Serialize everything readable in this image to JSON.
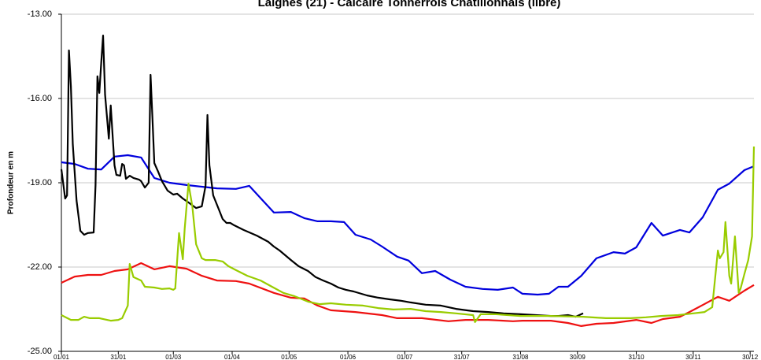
{
  "chart_data": {
    "type": "line",
    "title": "Laignes (21) - Calcaire Tonnerrois Châtillonnais (libre)",
    "y_label": "Profondeur en m",
    "xlim": [
      0,
      365
    ],
    "xticks": [
      {
        "value": 0,
        "label": "01/01"
      },
      {
        "value": 30,
        "label": "31/01"
      },
      {
        "value": 59,
        "label": "01/03"
      },
      {
        "value": 90,
        "label": "01/04"
      },
      {
        "value": 120,
        "label": "01/05"
      },
      {
        "value": 151,
        "label": "01/06"
      },
      {
        "value": 181,
        "label": "01/07"
      },
      {
        "value": 211,
        "label": "31/07"
      },
      {
        "value": 242,
        "label": "31/08"
      },
      {
        "value": 272,
        "label": "30/09"
      },
      {
        "value": 303,
        "label": "31/10"
      },
      {
        "value": 333,
        "label": "30/11"
      },
      {
        "value": 363,
        "label": "30/12"
      }
    ],
    "ylim": [
      -25,
      -13
    ],
    "yticks": [
      {
        "value": -25,
        "label": "-25.00"
      },
      {
        "value": -22,
        "label": "-22.00"
      },
      {
        "value": -19,
        "label": "-19.00"
      },
      {
        "value": -16,
        "label": "-16.00"
      },
      {
        "value": -13,
        "label": "-13.00"
      }
    ],
    "grid": true,
    "series": [
      {
        "color": "#0000dd",
        "x": [
          0,
          7,
          14,
          21,
          28,
          35,
          42,
          49,
          57,
          66,
          74,
          82,
          92,
          99,
          112,
          121,
          128,
          135,
          142,
          149,
          155,
          163,
          169,
          177,
          183,
          190,
          197,
          205,
          213,
          222,
          230,
          238,
          243,
          251,
          257,
          262,
          267,
          274,
          282,
          291,
          297,
          303,
          311,
          317,
          326,
          331,
          338,
          346,
          352,
          360,
          365
        ],
        "values": [
          -18.27,
          -18.33,
          -18.5,
          -18.53,
          -18.07,
          -18.02,
          -18.1,
          -18.83,
          -19.0,
          -19.08,
          -19.14,
          -19.2,
          -19.22,
          -19.11,
          -20.06,
          -20.04,
          -20.26,
          -20.37,
          -20.37,
          -20.4,
          -20.85,
          -21.02,
          -21.27,
          -21.63,
          -21.77,
          -22.22,
          -22.14,
          -22.45,
          -22.7,
          -22.78,
          -22.81,
          -22.73,
          -22.95,
          -22.98,
          -22.95,
          -22.7,
          -22.7,
          -22.31,
          -21.69,
          -21.47,
          -21.52,
          -21.3,
          -20.43,
          -20.88,
          -20.68,
          -20.77,
          -20.23,
          -19.25,
          -19.03,
          -18.55,
          -18.41
        ]
      },
      {
        "color": "#ee1111",
        "x": [
          0,
          7,
          14,
          21,
          28,
          35,
          42,
          49,
          57,
          66,
          74,
          82,
          92,
          99,
          112,
          121,
          128,
          135,
          142,
          155,
          169,
          177,
          190,
          204,
          213,
          225,
          238,
          243,
          258,
          267,
          274,
          282,
          291,
          303,
          311,
          317,
          326,
          331,
          338,
          346,
          352,
          360,
          365
        ],
        "values": [
          -22.56,
          -22.34,
          -22.28,
          -22.28,
          -22.14,
          -22.08,
          -21.86,
          -22.08,
          -21.97,
          -22.06,
          -22.31,
          -22.48,
          -22.5,
          -22.59,
          -22.92,
          -23.09,
          -23.12,
          -23.37,
          -23.54,
          -23.6,
          -23.71,
          -23.82,
          -23.82,
          -23.93,
          -23.88,
          -23.88,
          -23.93,
          -23.91,
          -23.91,
          -23.99,
          -24.1,
          -24.02,
          -23.99,
          -23.88,
          -23.99,
          -23.85,
          -23.77,
          -23.6,
          -23.35,
          -23.06,
          -23.2,
          -22.84,
          -22.64
        ]
      },
      {
        "color": "#000000",
        "x": [
          0,
          2,
          3,
          4,
          5,
          6,
          8,
          10,
          12,
          14,
          17,
          18,
          19,
          20,
          21,
          22,
          23,
          25,
          26,
          28,
          29,
          31,
          32,
          33,
          34,
          36,
          38,
          41,
          42,
          44,
          46,
          47,
          48,
          49,
          51,
          53,
          56,
          59,
          61,
          64,
          67,
          71,
          74,
          76,
          77,
          78,
          80,
          83,
          85,
          87,
          89,
          91,
          96,
          103,
          109,
          112,
          115,
          121,
          125,
          130,
          134,
          138,
          142,
          146,
          150,
          154,
          161,
          167,
          173,
          179,
          184,
          192,
          200,
          208,
          217,
          225,
          233,
          242,
          250,
          258,
          262,
          267,
          271,
          275
        ],
        "values": [
          -18.52,
          -19.56,
          -19.45,
          -14.29,
          -15.58,
          -17.63,
          -19.64,
          -20.71,
          -20.85,
          -20.79,
          -20.77,
          -19.08,
          -15.21,
          -15.8,
          -14.74,
          -13.76,
          -15.86,
          -17.43,
          -16.25,
          -18.38,
          -18.72,
          -18.75,
          -18.33,
          -18.38,
          -18.86,
          -18.75,
          -18.83,
          -18.89,
          -18.94,
          -19.17,
          -19.0,
          -15.16,
          -16.7,
          -18.3,
          -18.61,
          -18.94,
          -19.28,
          -19.42,
          -19.39,
          -19.56,
          -19.7,
          -19.9,
          -19.84,
          -19.11,
          -16.59,
          -18.38,
          -19.45,
          -19.95,
          -20.29,
          -20.43,
          -20.43,
          -20.51,
          -20.68,
          -20.88,
          -21.1,
          -21.27,
          -21.41,
          -21.75,
          -21.97,
          -22.14,
          -22.36,
          -22.48,
          -22.59,
          -22.73,
          -22.81,
          -22.87,
          -23.01,
          -23.09,
          -23.15,
          -23.2,
          -23.26,
          -23.34,
          -23.37,
          -23.49,
          -23.57,
          -23.6,
          -23.65,
          -23.68,
          -23.71,
          -23.74,
          -23.74,
          -23.71,
          -23.77,
          -23.65
        ]
      },
      {
        "color": "#99cc00",
        "x": [
          0,
          5,
          9,
          12,
          15,
          20,
          26,
          30,
          32,
          35,
          36,
          38,
          42,
          44,
          49,
          53,
          57,
          59,
          60,
          62,
          64,
          65,
          67,
          69,
          71,
          74,
          76,
          81,
          85,
          88,
          92,
          98,
          105,
          111,
          117,
          123,
          130,
          136,
          142,
          150,
          159,
          167,
          175,
          184,
          192,
          200,
          208,
          217,
          218,
          221,
          229,
          242,
          258,
          275,
          287,
          300,
          308,
          316,
          325,
          333,
          339,
          343,
          346,
          347,
          349,
          350,
          352,
          353,
          355,
          357,
          358,
          360,
          362,
          364,
          365
        ],
        "values": [
          -23.71,
          -23.88,
          -23.88,
          -23.77,
          -23.82,
          -23.82,
          -23.91,
          -23.88,
          -23.82,
          -23.37,
          -21.89,
          -22.36,
          -22.48,
          -22.7,
          -22.73,
          -22.78,
          -22.76,
          -22.81,
          -22.76,
          -20.79,
          -21.72,
          -20.63,
          -19.03,
          -19.84,
          -21.19,
          -21.69,
          -21.75,
          -21.75,
          -21.8,
          -21.97,
          -22.11,
          -22.31,
          -22.48,
          -22.7,
          -22.92,
          -23.04,
          -23.23,
          -23.32,
          -23.29,
          -23.34,
          -23.37,
          -23.46,
          -23.51,
          -23.49,
          -23.57,
          -23.6,
          -23.65,
          -23.71,
          -23.96,
          -23.68,
          -23.68,
          -23.74,
          -23.74,
          -23.77,
          -23.82,
          -23.82,
          -23.79,
          -23.74,
          -23.71,
          -23.65,
          -23.6,
          -23.43,
          -21.41,
          -21.69,
          -21.47,
          -20.4,
          -22.31,
          -22.59,
          -20.91,
          -22.92,
          -22.76,
          -22.25,
          -21.75,
          -20.91,
          -17.71
        ]
      }
    ]
  }
}
